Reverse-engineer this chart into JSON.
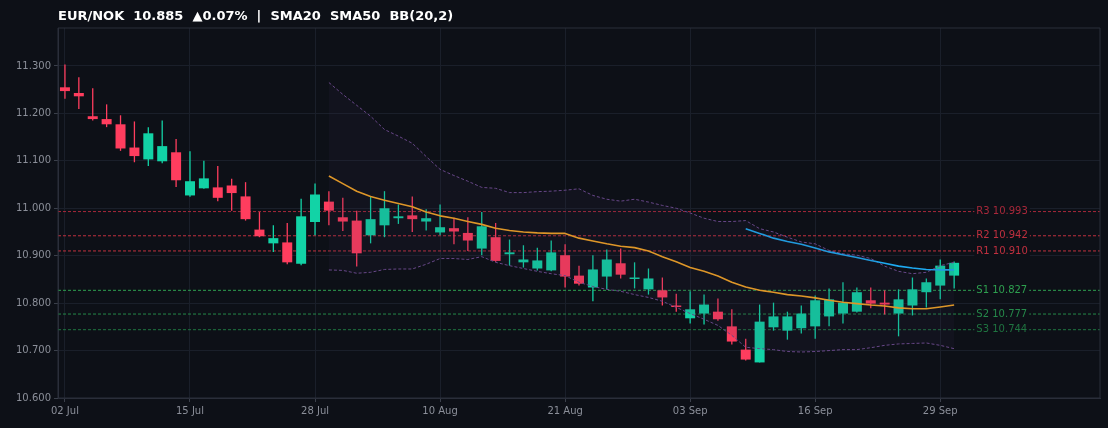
{
  "chart_data": {
    "type": "candlestick",
    "title": "EUR/NOK  10.885  ▲0.07%  |  SMA20  SMA50  BB(20,2)",
    "categories": [
      "02 Jul",
      null,
      null,
      null,
      null,
      null,
      null,
      null,
      null,
      "15 Jul",
      null,
      null,
      null,
      null,
      null,
      null,
      null,
      null,
      "28 Jul",
      null,
      null,
      null,
      null,
      null,
      null,
      null,
      null,
      "10 Aug",
      null,
      null,
      null,
      null,
      null,
      null,
      null,
      null,
      "21 Aug",
      null,
      null,
      null,
      null,
      null,
      null,
      null,
      null,
      "03 Sep",
      null,
      null,
      null,
      null,
      null,
      null,
      null,
      null,
      "16 Sep",
      null,
      null,
      null,
      null,
      null,
      null,
      null,
      null,
      "29 Sep",
      null,
      null,
      null,
      null,
      null,
      null,
      null,
      null,
      null,
      null,
      null
    ],
    "ohlc": [
      [
        11.255,
        11.303,
        11.231,
        11.247
      ],
      [
        11.243,
        11.276,
        11.209,
        11.236
      ],
      [
        11.194,
        11.253,
        11.185,
        11.188
      ],
      [
        11.188,
        11.219,
        11.171,
        11.177
      ],
      [
        11.177,
        11.196,
        11.121,
        11.126
      ],
      [
        11.128,
        11.183,
        11.097,
        11.11
      ],
      [
        11.103,
        11.171,
        11.089,
        11.158
      ],
      [
        11.099,
        11.185,
        11.095,
        11.131
      ],
      [
        11.118,
        11.146,
        11.045,
        11.059
      ],
      [
        11.027,
        11.12,
        11.024,
        11.057
      ],
      [
        11.042,
        11.1,
        11.041,
        11.063
      ],
      [
        11.044,
        11.089,
        11.015,
        11.022
      ],
      [
        11.048,
        11.062,
        10.995,
        11.032
      ],
      [
        11.025,
        11.055,
        10.974,
        10.977
      ],
      [
        10.955,
        10.992,
        10.939,
        10.941
      ],
      [
        10.926,
        10.964,
        10.908,
        10.937
      ],
      [
        10.928,
        10.969,
        10.882,
        10.886
      ],
      [
        10.883,
        11.02,
        10.88,
        10.983
      ],
      [
        10.971,
        11.052,
        10.943,
        11.029
      ],
      [
        11.014,
        11.036,
        10.964,
        10.995
      ],
      [
        10.981,
        11.022,
        10.952,
        10.972
      ],
      [
        10.974,
        10.995,
        10.877,
        10.905
      ],
      [
        10.943,
        11.024,
        10.926,
        10.977
      ],
      [
        10.964,
        11.036,
        10.939,
        11.0
      ],
      [
        10.979,
        11.008,
        10.967,
        10.983
      ],
      [
        10.985,
        11.025,
        10.95,
        10.977
      ],
      [
        10.972,
        10.998,
        10.953,
        10.979
      ],
      [
        10.949,
        11.008,
        10.943,
        10.96
      ],
      [
        10.958,
        10.98,
        10.924,
        10.951
      ],
      [
        10.948,
        10.981,
        10.91,
        10.932
      ],
      [
        10.915,
        10.992,
        10.901,
        10.962
      ],
      [
        10.939,
        10.969,
        10.887,
        10.889
      ],
      [
        10.903,
        10.934,
        10.879,
        10.907
      ],
      [
        10.886,
        10.922,
        10.875,
        10.892
      ],
      [
        10.873,
        10.917,
        10.869,
        10.89
      ],
      [
        10.869,
        10.932,
        10.867,
        10.907
      ],
      [
        10.901,
        10.924,
        10.833,
        10.856
      ],
      [
        10.858,
        10.879,
        10.837,
        10.841
      ],
      [
        10.833,
        10.901,
        10.804,
        10.871
      ],
      [
        10.856,
        10.913,
        10.829,
        10.892
      ],
      [
        10.884,
        10.915,
        10.852,
        10.86
      ],
      [
        10.852,
        10.886,
        10.831,
        10.854
      ],
      [
        10.829,
        10.873,
        10.818,
        10.852
      ],
      [
        10.827,
        10.854,
        10.795,
        10.812
      ],
      [
        10.795,
        10.82,
        10.782,
        10.793
      ],
      [
        10.768,
        10.825,
        10.757,
        10.787
      ],
      [
        10.778,
        10.818,
        10.755,
        10.797
      ],
      [
        10.782,
        10.81,
        10.763,
        10.766
      ],
      [
        10.751,
        10.787,
        10.713,
        10.719
      ],
      [
        10.702,
        10.725,
        10.679,
        10.681
      ],
      [
        10.675,
        10.797,
        10.675,
        10.761
      ],
      [
        10.749,
        10.801,
        10.742,
        10.772
      ],
      [
        10.742,
        10.782,
        10.723,
        10.772
      ],
      [
        10.747,
        10.795,
        10.736,
        10.778
      ],
      [
        10.751,
        10.816,
        10.725,
        10.806
      ],
      [
        10.772,
        10.831,
        10.751,
        10.808
      ],
      [
        10.778,
        10.844,
        10.757,
        10.801
      ],
      [
        10.782,
        10.833,
        10.78,
        10.823
      ],
      [
        10.806,
        10.833,
        10.789,
        10.799
      ],
      [
        10.801,
        10.827,
        10.776,
        10.797
      ],
      [
        10.778,
        10.829,
        10.73,
        10.808
      ],
      [
        10.795,
        10.854,
        10.774,
        10.829
      ],
      [
        10.823,
        10.852,
        10.791,
        10.844
      ],
      [
        10.837,
        10.892,
        10.808,
        10.879
      ],
      [
        10.858,
        10.888,
        10.831,
        10.885
      ],
      null,
      null,
      null,
      null,
      null,
      null,
      null,
      null,
      null,
      null
    ],
    "colors": [
      "#ff3d5e",
      "#ff3d5e",
      "#ff3d5e",
      "#ff3d5e",
      "#ff3d5e",
      "#ff3d5e",
      "#12d3a6",
      "#12d3a6",
      "#ff3d5e",
      "#12d3a6",
      "#12d3a6",
      "#ff3d5e",
      "#ff3d5e",
      "#ff3d5e",
      "#ff3d5e",
      "#12d3a6",
      "#ff3d5e",
      "#12d3a6",
      "#12d3a6",
      "#ff3d5e",
      "#ff3d5e",
      "#ff3d5e",
      "#12d3a6",
      "#12d3a6",
      "#12d3a6",
      "#ff3d5e",
      "#12d3a6",
      "#12d3a6",
      "#ff3d5e",
      "#ff3d5e",
      "#12d3a6",
      "#ff3d5e",
      "#12d3a6",
      "#12d3a6",
      "#12d3a6",
      "#12d3a6",
      "#ff3d5e",
      "#ff3d5e",
      "#12d3a6",
      "#12d3a6",
      "#ff3d5e",
      "#12d3a6",
      "#12d3a6",
      "#ff3d5e",
      "#ff3d5e",
      "#12d3a6",
      "#12d3a6",
      "#ff3d5e",
      "#ff3d5e",
      "#ff3d5e",
      "#12d3a6",
      "#12d3a6",
      "#12d3a6",
      "#12d3a6",
      "#12d3a6",
      "#12d3a6",
      "#12d3a6",
      "#12d3a6",
      "#ff3d5e",
      "#ff3d5e",
      "#12d3a6",
      "#12d3a6",
      "#12d3a6",
      "#12d3a6",
      "#12d3a6",
      null,
      null,
      null,
      null,
      null,
      null,
      null,
      null,
      null,
      null
    ],
    "series": [
      {
        "type": "line",
        "color": "#f5a623",
        "values": [
          null,
          null,
          null,
          null,
          null,
          null,
          null,
          null,
          null,
          null,
          null,
          null,
          null,
          null,
          null,
          null,
          null,
          null,
          null,
          11.068,
          11.052,
          11.036,
          11.025,
          11.017,
          11.01,
          11.003,
          10.992,
          10.984,
          10.979,
          10.972,
          10.966,
          10.958,
          10.953,
          10.95,
          10.948,
          10.947,
          10.947,
          10.937,
          10.931,
          10.925,
          10.92,
          10.917,
          10.91,
          10.898,
          10.887,
          10.875,
          10.867,
          10.857,
          10.844,
          10.834,
          10.827,
          10.823,
          10.818,
          10.815,
          10.811,
          10.806,
          10.802,
          10.799,
          10.796,
          10.794,
          10.79,
          10.788,
          10.788,
          10.792,
          10.796,
          null,
          null,
          null,
          null,
          null,
          null,
          null,
          null,
          null,
          null
        ],
        "upper": [
          null,
          null,
          null,
          null,
          null,
          null,
          null,
          null,
          null,
          null,
          null,
          null,
          null,
          null,
          null,
          null,
          null,
          null,
          null,
          11.265,
          11.24,
          11.217,
          11.194,
          11.166,
          11.152,
          11.137,
          11.109,
          11.082,
          11.069,
          11.057,
          11.044,
          11.042,
          11.033,
          11.033,
          11.035,
          11.036,
          11.038,
          11.041,
          11.027,
          11.019,
          11.015,
          11.019,
          11.013,
          11.006,
          11.0,
          10.99,
          10.979,
          10.972,
          10.972,
          10.974,
          10.957,
          10.95,
          10.939,
          10.929,
          10.925,
          10.911,
          10.904,
          10.901,
          10.894,
          10.878,
          10.867,
          10.862,
          10.865,
          10.879,
          10.886,
          null,
          null,
          null,
          null,
          null,
          null,
          null,
          null,
          null,
          null
        ],
        "lower": [
          null,
          null,
          null,
          null,
          null,
          null,
          null,
          null,
          null,
          null,
          null,
          null,
          null,
          null,
          null,
          null,
          null,
          null,
          null,
          10.87,
          10.869,
          10.863,
          10.865,
          10.871,
          10.872,
          10.872,
          10.882,
          10.894,
          10.894,
          10.892,
          10.898,
          10.886,
          10.879,
          10.873,
          10.867,
          10.862,
          10.858,
          10.844,
          10.835,
          10.829,
          10.825,
          10.818,
          10.812,
          10.804,
          10.791,
          10.778,
          10.766,
          10.753,
          10.732,
          10.707,
          10.704,
          10.702,
          10.698,
          10.697,
          10.698,
          10.7,
          10.702,
          10.702,
          10.706,
          10.711,
          10.714,
          10.715,
          10.716,
          10.711,
          10.704,
          null,
          null,
          null,
          null,
          null,
          null,
          null,
          null,
          null,
          null
        ]
      },
      {
        "type": "line",
        "color": "#1eaaf1",
        "values": [
          null,
          null,
          null,
          null,
          null,
          null,
          null,
          null,
          null,
          null,
          null,
          null,
          null,
          null,
          null,
          null,
          null,
          null,
          null,
          null,
          null,
          null,
          null,
          null,
          null,
          null,
          null,
          null,
          null,
          null,
          null,
          null,
          null,
          null,
          null,
          null,
          null,
          null,
          null,
          null,
          null,
          null,
          null,
          null,
          null,
          null,
          null,
          null,
          null,
          10.957,
          10.947,
          10.937,
          10.93,
          10.924,
          10.916,
          10.908,
          10.902,
          10.896,
          10.89,
          10.884,
          10.878,
          10.874,
          10.871,
          10.87,
          10.87,
          null,
          null,
          null,
          null,
          null,
          null,
          null,
          null,
          null,
          null
        ]
      },
      {
        "type": "line",
        "color": "#6b4a8c",
        "line_style": "dashed",
        "values": [
          null,
          null,
          null,
          null,
          null,
          null,
          null,
          null,
          null,
          null,
          null,
          null,
          null,
          null,
          null,
          null,
          null,
          null,
          null,
          11.265,
          11.24,
          11.217,
          11.194,
          11.166,
          11.152,
          11.137,
          11.109,
          11.082,
          11.069,
          11.057,
          11.044,
          11.042,
          11.033,
          11.033,
          11.035,
          11.036,
          11.038,
          11.041,
          11.027,
          11.019,
          11.015,
          11.019,
          11.013,
          11.006,
          11.0,
          10.99,
          10.979,
          10.972,
          10.972,
          10.974,
          10.957,
          10.95,
          10.939,
          10.929,
          10.925,
          10.911,
          10.904,
          10.901,
          10.894,
          10.878,
          10.867,
          10.862,
          10.865,
          10.879,
          10.886,
          null,
          null,
          null,
          null,
          null,
          null,
          null,
          null,
          null,
          null
        ]
      },
      {
        "type": "line",
        "color": "#6b4a8c",
        "line_style": "dashed",
        "values": [
          null,
          null,
          null,
          null,
          null,
          null,
          null,
          null,
          null,
          null,
          null,
          null,
          null,
          null,
          null,
          null,
          null,
          null,
          null,
          10.87,
          10.869,
          10.863,
          10.865,
          10.871,
          10.872,
          10.872,
          10.882,
          10.894,
          10.894,
          10.892,
          10.898,
          10.886,
          10.879,
          10.873,
          10.867,
          10.862,
          10.858,
          10.844,
          10.835,
          10.829,
          10.825,
          10.818,
          10.812,
          10.804,
          10.791,
          10.778,
          10.766,
          10.753,
          10.732,
          10.707,
          10.704,
          10.702,
          10.698,
          10.697,
          10.698,
          10.7,
          10.702,
          10.702,
          10.706,
          10.711,
          10.714,
          10.715,
          10.716,
          10.711,
          10.704,
          null,
          null,
          null,
          null,
          null,
          null,
          null,
          null,
          null,
          null
        ]
      }
    ],
    "ref_lines": [
      {
        "axis": "y",
        "value": 10.993,
        "label": "R3 10.993",
        "color": "#a8283a",
        "line_style": "dashed"
      },
      {
        "axis": "y",
        "value": 10.942,
        "label": "R2 10.942",
        "color": "#c0303f",
        "line_style": "dashed"
      },
      {
        "axis": "y",
        "value": 10.91,
        "label": "R1 10.910",
        "color": "#c0303f",
        "line_style": "dashed"
      },
      {
        "axis": "y",
        "value": 10.827,
        "label": "S1 10.827",
        "color": "#2ea04f",
        "line_style": "dashed"
      },
      {
        "axis": "y",
        "value": 10.777,
        "label": "S2 10.777",
        "color": "#25894a",
        "line_style": "dashed"
      },
      {
        "axis": "y",
        "value": 10.744,
        "label": "S3 10.744",
        "color": "#1f7440",
        "line_style": "dashed"
      }
    ],
    "ylim": [
      10.6,
      11.38
    ],
    "yticks": [
      {
        "value": 10.6,
        "label": "10.600"
      },
      {
        "value": 10.7,
        "label": "10.700"
      },
      {
        "value": 10.8,
        "label": "10.800"
      },
      {
        "value": 10.9,
        "label": "10.900"
      },
      {
        "value": 11.0,
        "label": "11.000"
      },
      {
        "value": 11.1,
        "label": "11.100"
      },
      {
        "value": 11.2,
        "label": "11.200"
      },
      {
        "value": 11.3,
        "label": "11.300"
      }
    ],
    "grid": true,
    "legend": false
  }
}
